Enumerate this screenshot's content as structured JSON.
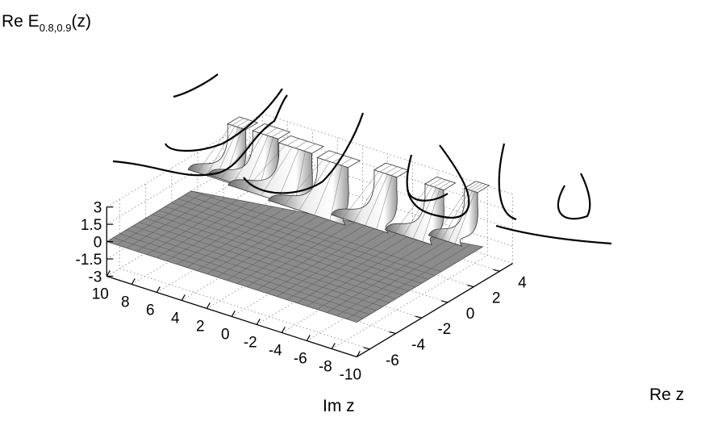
{
  "chart_data": {
    "type": "surface",
    "title": "",
    "zlabel": {
      "main": "Re E",
      "subscript": "0.8,0.9",
      "suffix": "(z)"
    },
    "xlabel": "Im z",
    "ylabel": "Re z",
    "z_ticks": [
      "3",
      "1.5",
      "0",
      "-1.5",
      "-3"
    ],
    "z_tick_values": [
      3,
      1.5,
      0,
      -1.5,
      -3
    ],
    "zlim": [
      -3,
      3
    ],
    "im_ticks": [
      "10",
      "8",
      "6",
      "4",
      "2",
      "0",
      "-2",
      "-4",
      "-6",
      "-8",
      "-10"
    ],
    "im_tick_values": [
      10,
      8,
      6,
      4,
      2,
      0,
      -2,
      -4,
      -6,
      -8,
      -10
    ],
    "imlim": [
      -10,
      10
    ],
    "re_ticks": [
      "-6",
      "-4",
      "-2",
      "0",
      "2",
      "4"
    ],
    "re_tick_values": [
      -6,
      -4,
      -2,
      0,
      2,
      4
    ],
    "relim": [
      -7,
      5
    ],
    "grid": true,
    "surface_color": "#8c8c8c",
    "contour_color": "#000000",
    "note": "Surface is flat at 0 for Re z below about -2; poles clipped at z = 3 appear along Re z near 0 to 4."
  }
}
